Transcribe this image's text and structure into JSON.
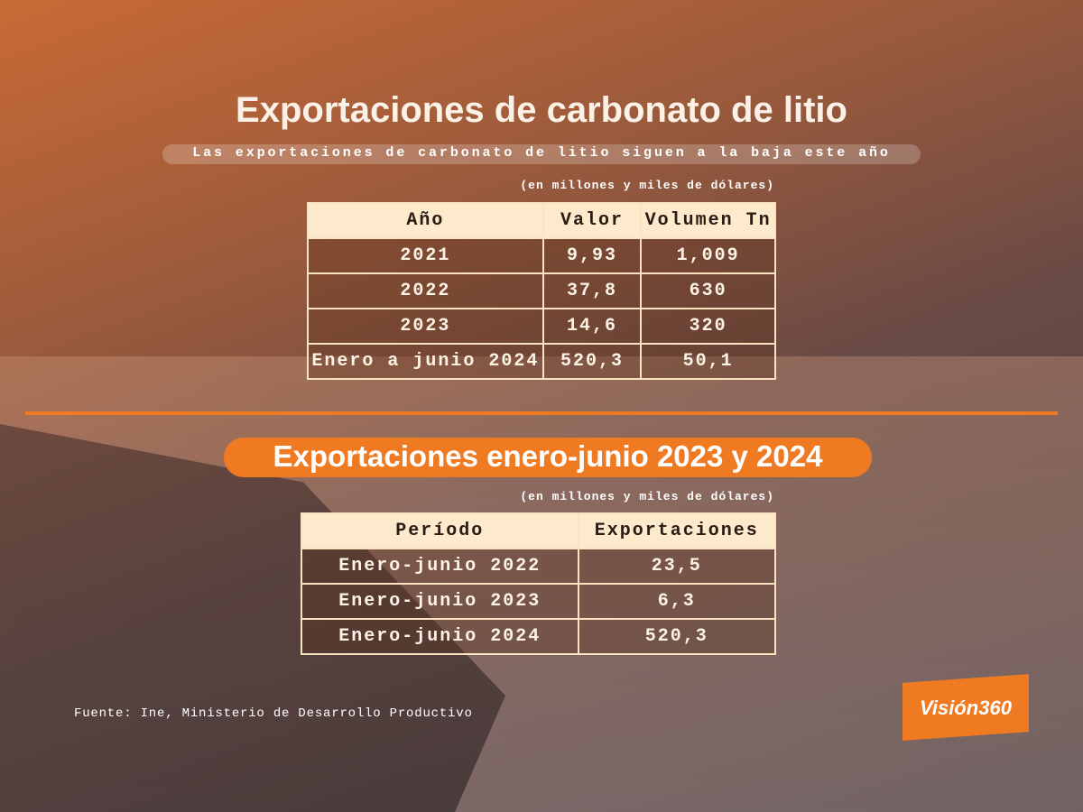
{
  "header": {
    "title": "Exportaciones de carbonato de litio",
    "subtitle": "Las exportaciones de carbonato de litio siguen a la baja este año"
  },
  "table1": {
    "note": "(en millones y miles de dólares)",
    "columns": [
      "Año",
      "Valor",
      "Volumen Tn"
    ],
    "rows": [
      [
        "2021",
        "9,93",
        "1,009"
      ],
      [
        "2022",
        "37,8",
        "630"
      ],
      [
        "2023",
        "14,6",
        "320"
      ],
      [
        "Enero a junio 2024",
        "520,3",
        "50,1"
      ]
    ]
  },
  "section2": {
    "title": "Exportaciones enero-junio 2023 y 2024"
  },
  "table2": {
    "note": "(en millones y miles de dólares)",
    "columns": [
      "Período",
      "Exportaciones"
    ],
    "rows": [
      [
        "Enero-junio 2022",
        "23,5"
      ],
      [
        "Enero-junio 2023",
        "6,3"
      ],
      [
        "Enero-junio 2024",
        "520,3"
      ]
    ]
  },
  "footer": {
    "source": "Fuente: Ine, Ministerio de Desarrollo Productivo",
    "logo": "Visión360"
  }
}
